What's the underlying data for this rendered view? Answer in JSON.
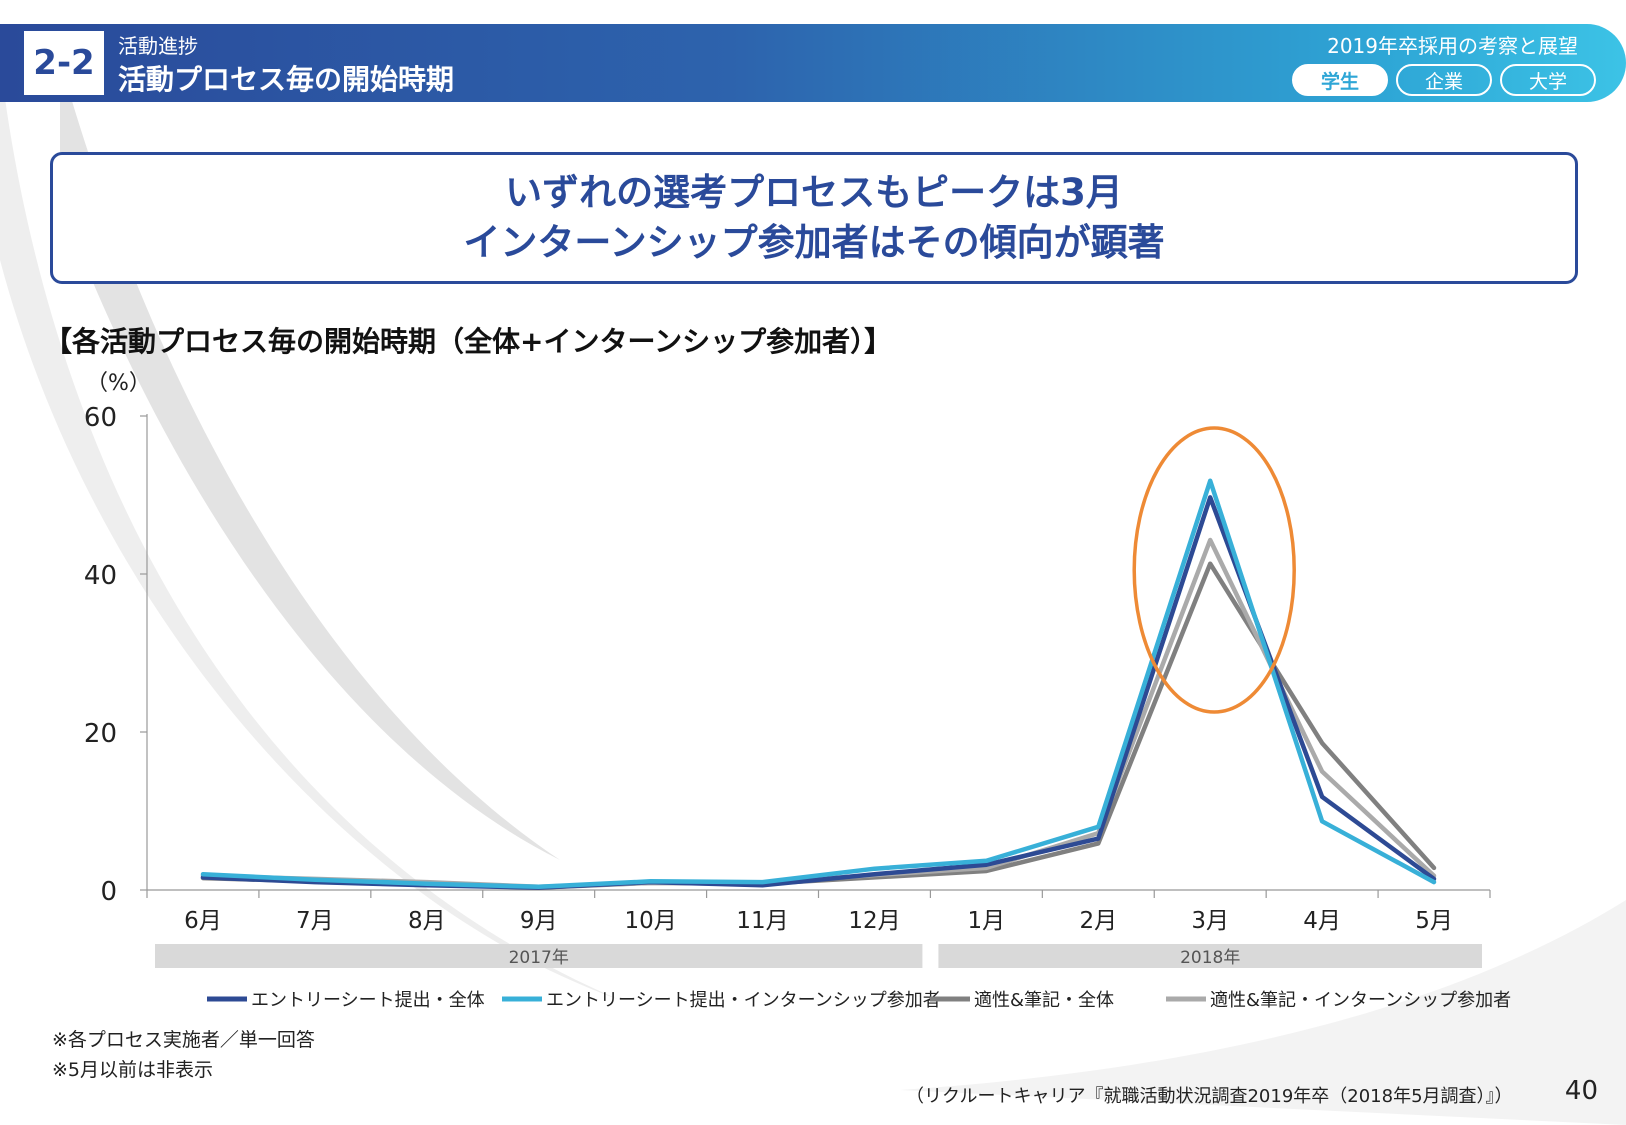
{
  "header": {
    "section_number": "2-2",
    "section_sub": "活動進捗",
    "section_title": "活動プロセス毎の開始時期",
    "report_title": "2019年卒採用の考察と展望",
    "tabs": [
      {
        "label": "学生",
        "active": true
      },
      {
        "label": "企業",
        "active": false
      },
      {
        "label": "大学",
        "active": false
      }
    ]
  },
  "headline": {
    "line1": "いずれの選考プロセスもピークは3月",
    "line2": "インターンシップ参加者はその傾向が顕著"
  },
  "chart_heading": "【各活動プロセス毎の開始時期（全体+インターンシップ参加者）】",
  "chart_data": {
    "type": "line",
    "title": "【各活動プロセス毎の開始時期（全体+インターンシップ参加者）】",
    "ylabel": "（%）",
    "xlabel": "",
    "ylim": [
      0,
      60
    ],
    "yticks": [
      0,
      20,
      40,
      60
    ],
    "categories": [
      "6月",
      "7月",
      "8月",
      "9月",
      "10月",
      "11月",
      "12月",
      "1月",
      "2月",
      "3月",
      "4月",
      "5月"
    ],
    "year_groups": [
      {
        "label": "2017年",
        "from": 0,
        "to": 6
      },
      {
        "label": "2018年",
        "from": 7,
        "to": 11
      }
    ],
    "series": [
      {
        "name": "エントリーシート提出・全体",
        "color": "#2d4a94",
        "values": [
          1.6,
          1.0,
          0.6,
          0.3,
          1.0,
          0.6,
          2.0,
          3.2,
          6.5,
          49.7,
          11.8,
          1.4
        ]
      },
      {
        "name": "エントリーシート提出・インターンシップ参加者",
        "color": "#38b0d8",
        "values": [
          2.0,
          1.3,
          0.8,
          0.4,
          1.1,
          1.0,
          2.7,
          3.7,
          8.0,
          51.8,
          8.7,
          1.0
        ]
      },
      {
        "name": "適性&筆記・全体",
        "color": "#808080",
        "values": [
          1.5,
          1.1,
          0.7,
          0.3,
          0.9,
          0.8,
          1.6,
          2.4,
          5.9,
          41.3,
          18.6,
          2.8
        ]
      },
      {
        "name": "適性&筆記・インターンシップ参加者",
        "color": "#aaaaaa",
        "values": [
          1.8,
          1.4,
          1.0,
          0.4,
          0.9,
          0.9,
          1.9,
          2.8,
          7.2,
          44.3,
          15.0,
          1.8
        ]
      }
    ],
    "highlight": {
      "category": "3月",
      "color": "#ee8a35"
    }
  },
  "footnotes": [
    "※各プロセス実施者／単一回答",
    "※5月以前は非表示"
  ],
  "source": "（リクルートキャリア『就職活動状況調査2019年卒（2018年5月調査）』）",
  "page_number": "40"
}
